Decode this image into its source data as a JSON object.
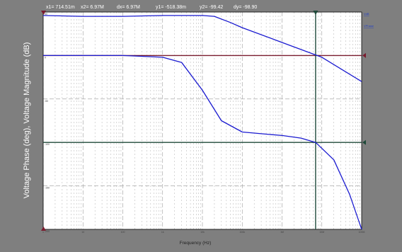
{
  "readout": {
    "x1": "x1= 714.51m",
    "x2": "x2= 6.97M",
    "dx": "dx= 6.97M",
    "y1": "y1= -518.38m",
    "y2": "y2= -99.42",
    "dy": "dy= -98.90"
  },
  "legend": {
    "magnitude": "VdB",
    "phase": "VPhase"
  },
  "colors": {
    "background": "#7f7f7f",
    "plot_bg": "#ffffff",
    "trace": "#1a1ad0",
    "cursor_magnitude": "#7a1c2f",
    "cursor_phase": "#1f4a3a",
    "grid": "#9a9a9a"
  },
  "chart_data": {
    "type": "line",
    "title": "",
    "xlabel": "Frequency (Hz)",
    "ylabel": "Voltage Phase (deg),  Voltage Magnitude (dB)",
    "xscale": "log",
    "xlim": [
      1,
      100000000
    ],
    "ylim": [
      -200,
      50
    ],
    "grid": true,
    "x_ticks": [
      "1",
      "10",
      "100",
      "1k",
      "10k",
      "100k",
      "1M",
      "10M",
      "100M"
    ],
    "y_ticks": [
      "50",
      "0",
      "-50",
      "-100",
      "-150",
      "-200"
    ],
    "cursors": [
      {
        "name": "cursor1-horizontal",
        "orientation": "horizontal",
        "value": 0
      },
      {
        "name": "cursor2-horizontal",
        "orientation": "horizontal",
        "value": -100
      },
      {
        "name": "cursor2-vertical",
        "orientation": "vertical",
        "value": 6970000
      }
    ],
    "series": [
      {
        "name": "Magnitude",
        "x": [
          1,
          10,
          100,
          1000,
          3000,
          10000,
          20000,
          50000,
          100000,
          1000000,
          10000000,
          100000000
        ],
        "y": [
          46,
          45,
          45,
          46,
          46,
          46,
          45,
          38,
          32,
          15,
          -2,
          -30
        ]
      },
      {
        "name": "Phase",
        "x": [
          1,
          10,
          100,
          1000,
          3000,
          10000,
          30000,
          100000,
          300000,
          1000000,
          3000000,
          7000000,
          20000000,
          50000000,
          100000000
        ],
        "y": [
          0,
          0,
          0,
          -2,
          -8,
          -40,
          -75,
          -88,
          -90,
          -92,
          -95,
          -100,
          -120,
          -160,
          -200
        ]
      }
    ]
  }
}
